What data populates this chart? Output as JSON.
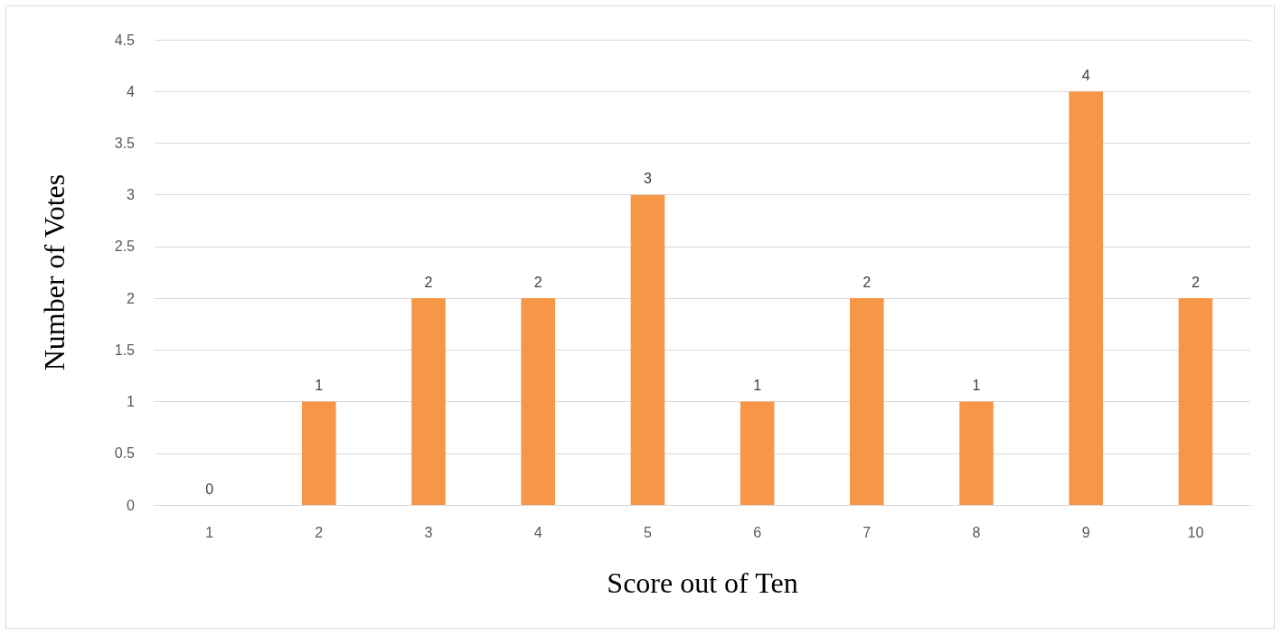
{
  "chart_data": {
    "type": "bar",
    "xlabel": "Score out of Ten",
    "ylabel": "Number of Votes",
    "categories": [
      "1",
      "2",
      "3",
      "4",
      "5",
      "6",
      "7",
      "8",
      "9",
      "10"
    ],
    "values": [
      0,
      1,
      2,
      2,
      3,
      1,
      2,
      1,
      4,
      2
    ],
    "color": "#f79646",
    "ylim": [
      0,
      4.5
    ],
    "yticks": [
      0,
      0.5,
      1,
      1.5,
      2,
      2.5,
      3,
      3.5,
      4,
      4.5
    ],
    "grid": "y",
    "data_labels": true
  }
}
